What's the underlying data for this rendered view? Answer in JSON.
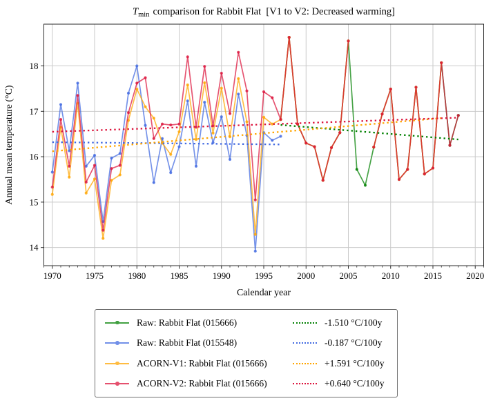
{
  "title": {
    "t_symbol": "T",
    "t_subscript": "min",
    "rest": "comparison for Rabbit Flat  [V1 to V2: Decreased warming]"
  },
  "axes": {
    "xlabel": "Calendar year",
    "ylabel": "Annual mean temperature (°C)",
    "xticks": [
      1970,
      1975,
      1980,
      1985,
      1990,
      1995,
      2000,
      2005,
      2010,
      2015,
      2020
    ],
    "yticks": [
      14,
      15,
      16,
      17,
      18
    ],
    "x_minor_step": 1,
    "xlim": [
      1969,
      2021
    ],
    "ylim": [
      13.6,
      18.92
    ],
    "grid": true
  },
  "chart_data": {
    "type": "line",
    "title": "Tmin comparison for Rabbit Flat [V1 to V2: Decreased warming]",
    "xlabel": "Calendar year",
    "ylabel": "Annual mean temperature (°C)",
    "legend_position": "below",
    "series": [
      {
        "name": "Raw: Rabbit Flat (015666)",
        "color": "#008000",
        "style": "solid-marker",
        "start_year": 1997,
        "values": [
          16.82,
          18.63,
          16.72,
          16.3,
          16.22,
          15.48,
          16.2,
          16.53,
          18.55,
          15.72,
          15.37,
          16.21,
          16.94,
          17.49,
          15.5,
          15.72,
          17.53,
          15.62,
          15.75,
          18.07,
          16.25,
          16.91
        ]
      },
      {
        "name": "Raw: Rabbit Flat (015548)",
        "color": "#4169e1",
        "style": "solid-marker",
        "start_year": 1970,
        "values": [
          15.66,
          17.15,
          16.13,
          17.62,
          15.79,
          16.03,
          14.57,
          15.97,
          16.07,
          17.4,
          18.0,
          16.69,
          15.43,
          16.4,
          15.65,
          16.22,
          17.23,
          15.79,
          17.2,
          16.31,
          16.88,
          15.94,
          17.38,
          16.47,
          13.92,
          16.53,
          16.36,
          16.45
        ]
      },
      {
        "name": "ACORN-V1: Rabbit Flat (015666)",
        "color": "#ffa500",
        "style": "solid-marker",
        "start_year": 1970,
        "values": [
          15.17,
          16.65,
          15.55,
          17.18,
          15.2,
          15.51,
          14.2,
          15.48,
          15.6,
          16.8,
          17.49,
          17.1,
          16.85,
          16.3,
          16.05,
          16.55,
          17.58,
          16.38,
          17.63,
          16.52,
          17.51,
          16.44,
          17.72,
          16.77,
          14.29,
          16.87,
          16.72,
          16.82,
          18.63,
          16.72,
          16.3,
          16.22,
          15.48,
          16.2,
          16.53,
          18.55,
          null,
          null,
          16.21,
          16.94,
          17.49,
          15.5,
          15.72,
          17.53,
          15.62,
          15.75,
          18.07
        ]
      },
      {
        "name": "ACORN-V2: Rabbit Flat (015666)",
        "color": "#dc143c",
        "style": "solid-marker",
        "start_year": 1970,
        "values": [
          15.33,
          16.82,
          15.79,
          17.35,
          15.44,
          15.81,
          14.38,
          15.74,
          15.81,
          16.97,
          17.62,
          17.74,
          16.4,
          16.72,
          16.7,
          16.72,
          18.2,
          16.65,
          17.99,
          16.68,
          17.84,
          16.95,
          18.3,
          17.45,
          15.05,
          17.43,
          17.3,
          16.82,
          18.63,
          16.72,
          16.3,
          16.22,
          15.48,
          16.2,
          16.53,
          18.55,
          null,
          null,
          16.21,
          16.94,
          17.49,
          15.5,
          15.72,
          17.53,
          15.62,
          15.75,
          18.07,
          16.25,
          16.91
        ]
      }
    ],
    "trends": [
      {
        "label": "-1.510 °C/100y",
        "color": "#008000",
        "year_start": 1997,
        "year_end": 2018,
        "value_start": 16.7,
        "value_end": 16.38
      },
      {
        "label": "-0.187 °C/100y",
        "color": "#4169e1",
        "year_start": 1970,
        "year_end": 1997,
        "value_start": 16.32,
        "value_end": 16.27
      },
      {
        "label": "+1.591 °C/100y",
        "color": "#ffa500",
        "year_start": 1970,
        "year_end": 2016,
        "value_start": 16.12,
        "value_end": 16.85
      },
      {
        "label": "+0.640 °C/100y",
        "color": "#dc143c",
        "year_start": 1970,
        "year_end": 2018,
        "value_start": 16.55,
        "value_end": 16.86
      }
    ]
  },
  "style": {
    "grid_color": "#c9c9c9",
    "spine_color": "#2b2b2b",
    "line_alpha": 0.72,
    "background": "#ffffff"
  }
}
